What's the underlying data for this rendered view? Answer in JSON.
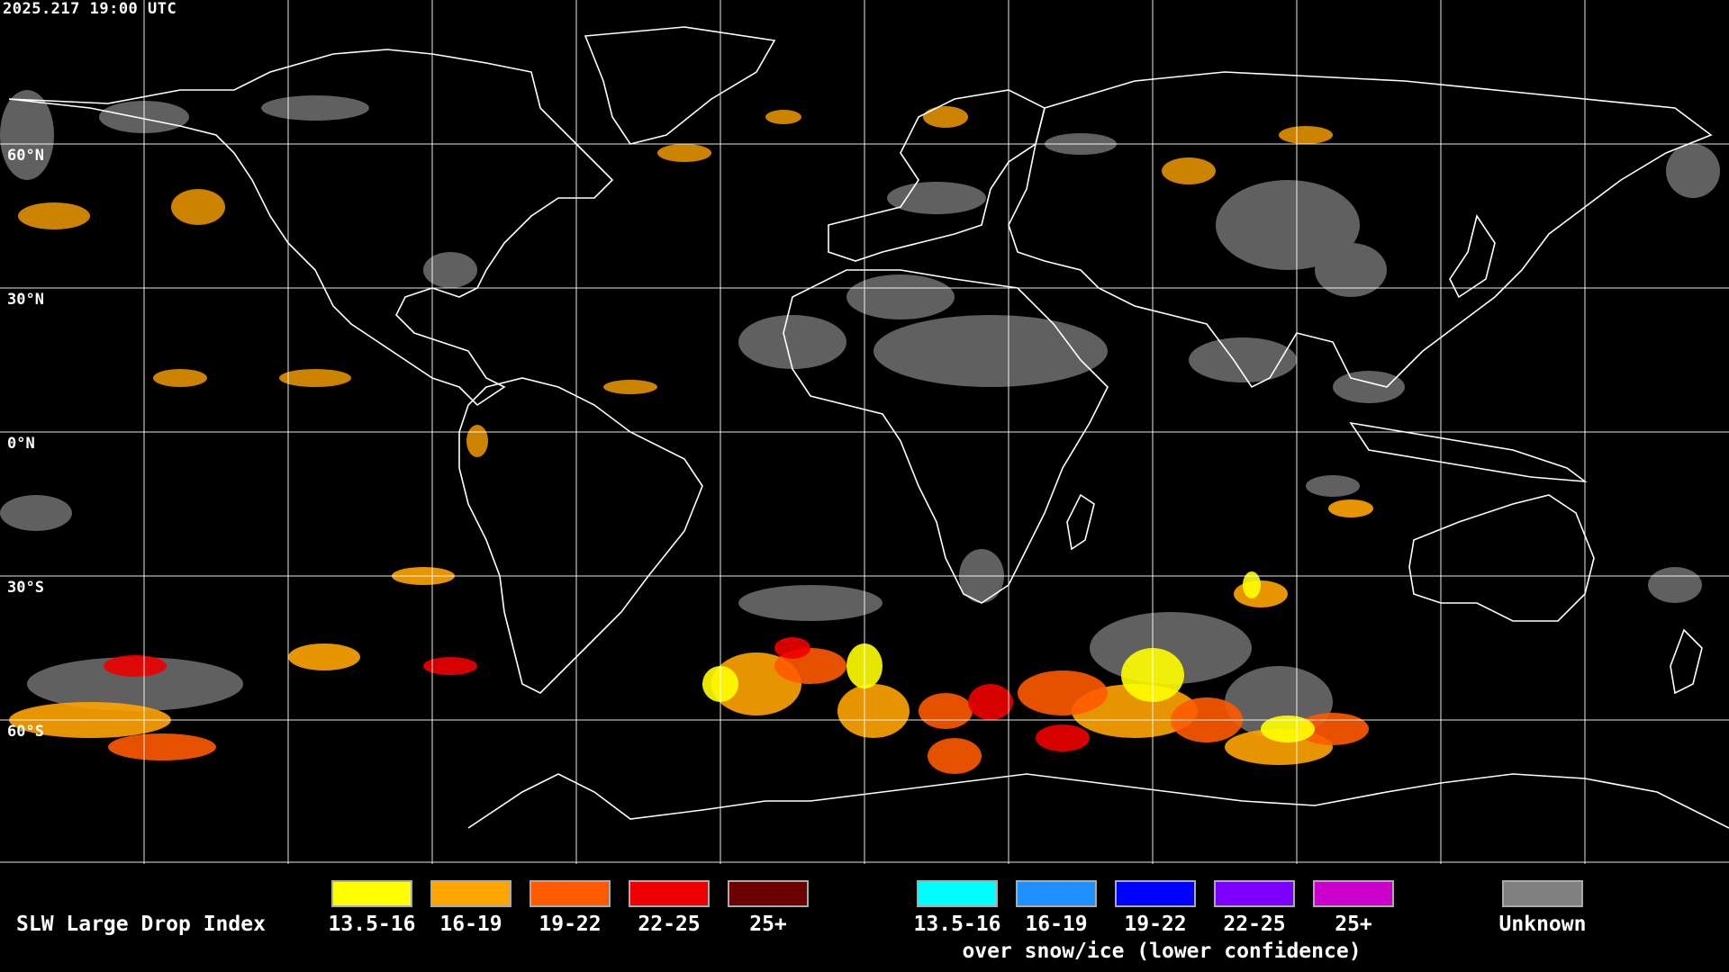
{
  "header": {
    "timestamp": "2025.217 19:00 UTC"
  },
  "lat_labels": [
    "60°N",
    "30°N",
    "0°N",
    "30°S",
    "60°S"
  ],
  "legend": {
    "title": "SLW Large Drop Index",
    "main": [
      {
        "label": "13.5-16",
        "color": "#FFFF00"
      },
      {
        "label": "16-19",
        "color": "#FFA500"
      },
      {
        "label": "19-22",
        "color": "#FF5A00"
      },
      {
        "label": "22-25",
        "color": "#EE0000"
      },
      {
        "label": "25+",
        "color": "#6A0000"
      }
    ],
    "snow_ice": [
      {
        "label": "13.5-16",
        "color": "#00FFFF"
      },
      {
        "label": "16-19",
        "color": "#1E90FF"
      },
      {
        "label": "19-22",
        "color": "#0000FF"
      },
      {
        "label": "22-25",
        "color": "#7B00FF"
      },
      {
        "label": "25+",
        "color": "#CC00CC"
      }
    ],
    "snow_ice_note": "over snow/ice (lower confidence)",
    "unknown": {
      "label": "Unknown",
      "color": "#808080"
    }
  }
}
